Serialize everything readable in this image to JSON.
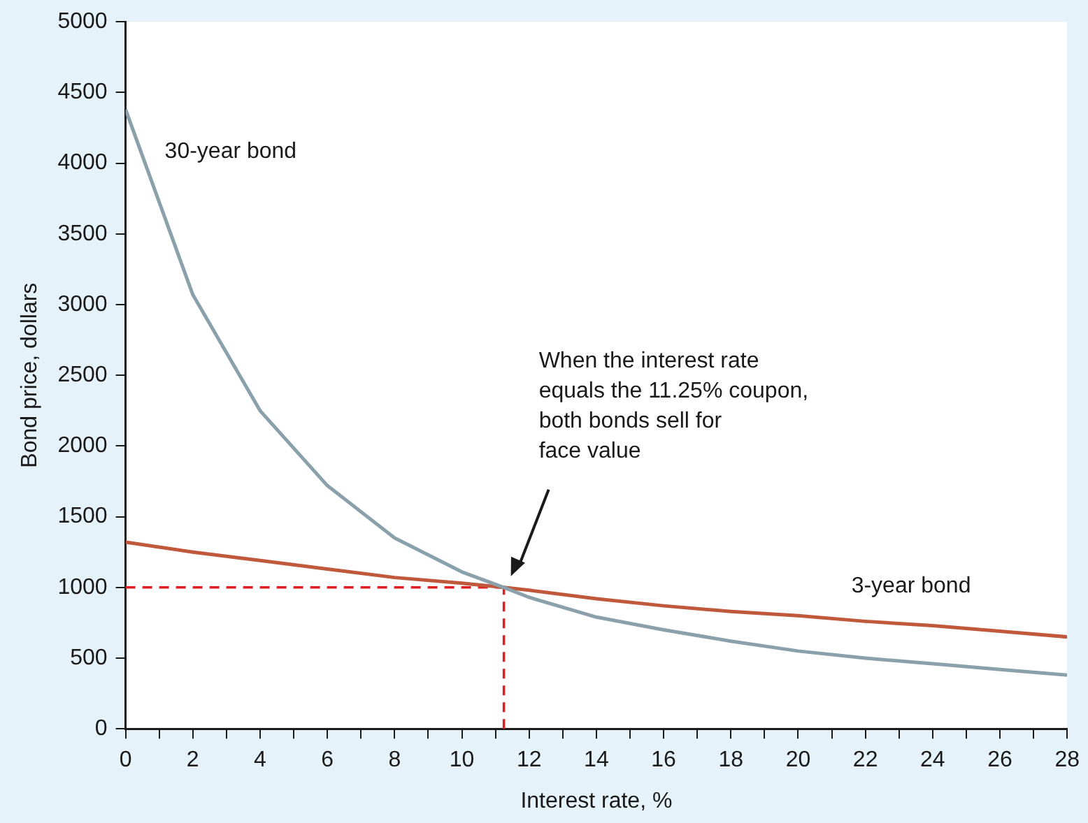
{
  "chart_data": {
    "type": "line",
    "xlabel": "Interest rate, %",
    "ylabel": "Bond price, dollars",
    "x": [
      0,
      2,
      4,
      6,
      8,
      10,
      11.25,
      12,
      14,
      16,
      18,
      20,
      22,
      24,
      26,
      28
    ],
    "series": [
      {
        "name": "30-year bond",
        "color": "#8aa0ab",
        "values": [
          4380,
          3070,
          2250,
          1720,
          1350,
          1110,
          1000,
          930,
          790,
          700,
          620,
          550,
          500,
          460,
          420,
          380
        ]
      },
      {
        "name": "3-year bond",
        "color": "#c0583b",
        "values": [
          1320,
          1250,
          1190,
          1130,
          1070,
          1030,
          1000,
          980,
          920,
          870,
          830,
          800,
          760,
          730,
          690,
          650
        ]
      }
    ],
    "xlim": [
      0,
      28
    ],
    "ylim": [
      0,
      5000
    ],
    "xticks": [
      0,
      {
        "value": 1,
        "label": null
      },
      2,
      {
        "value": 3,
        "label": null
      },
      4,
      {
        "value": 5,
        "label": null
      },
      6,
      {
        "value": 7,
        "label": null
      },
      8,
      {
        "value": 9,
        "label": null
      },
      10,
      {
        "value": 11,
        "label": null
      },
      12,
      {
        "value": 13,
        "label": null
      },
      14,
      {
        "value": 15,
        "label": null
      },
      16,
      {
        "value": 17,
        "label": null
      },
      18,
      {
        "value": 19,
        "label": null
      },
      20,
      {
        "value": 21,
        "label": null
      },
      22,
      {
        "value": 23,
        "label": null
      },
      24,
      {
        "value": 25,
        "label": null
      },
      26,
      {
        "value": 27,
        "label": null
      },
      28
    ],
    "yticks": [
      0,
      500,
      1000,
      1500,
      2000,
      2500,
      3000,
      3500,
      4000,
      4500,
      5000
    ],
    "ref_lines": [
      {
        "axis": "x",
        "value": 11.25,
        "color": "#e02020",
        "line_style": "dashed"
      },
      {
        "axis": "y",
        "value": 1000,
        "color": "#e02020",
        "line_style": "dashed"
      }
    ],
    "annotations": [
      "When the interest rate\nequals the 11.25% coupon,\nboth bonds sell for\nface value"
    ],
    "grid": false,
    "legend": false,
    "marker": "none",
    "line_style": "solid"
  }
}
